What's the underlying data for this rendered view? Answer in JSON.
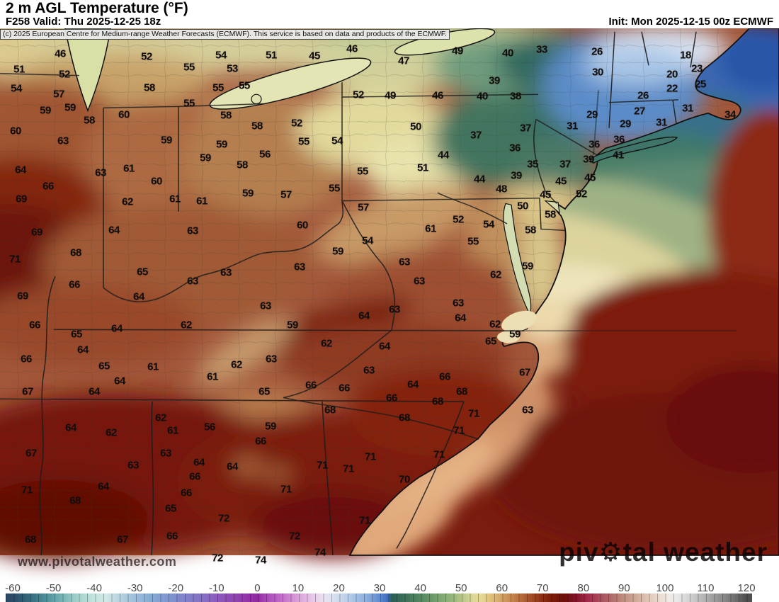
{
  "header": {
    "title": "2 m AGL Temperature (°F)",
    "valid": "F258 Valid: Thu 2025-12-25 18z",
    "init": "Init: Mon 2025-12-15 00z ECMWF",
    "copyright": "(c) 2025 European Centre for Medium-range Weather Forecasts (ECMWF). This service is based on data and products of the ECMWF."
  },
  "watermarks": {
    "url": "www.pivotalweather.com",
    "brand_pre": "piv",
    "brand_gear": "⚙",
    "brand_post": "tal weather"
  },
  "colorbar": {
    "unit": "°F",
    "min": -60,
    "max": 120,
    "ticks": [
      -60,
      -50,
      -40,
      -30,
      -20,
      -10,
      0,
      10,
      20,
      30,
      40,
      50,
      60,
      70,
      80,
      90,
      100,
      110,
      120
    ],
    "stops": [
      [
        -60,
        "#2b4a68"
      ],
      [
        -56,
        "#33687a"
      ],
      [
        -52,
        "#4b8f99"
      ],
      [
        -48,
        "#74b4b4"
      ],
      [
        -44,
        "#a3d2cd"
      ],
      [
        -40,
        "#c6e5de"
      ],
      [
        -37,
        "#cfe7e6"
      ],
      [
        -34,
        "#b9d3e0"
      ],
      [
        -30,
        "#9dbfdb"
      ],
      [
        -26,
        "#85aad4"
      ],
      [
        -22,
        "#7e97d0"
      ],
      [
        -18,
        "#8083cb"
      ],
      [
        -14,
        "#8572c6"
      ],
      [
        -10,
        "#8c5cbe"
      ],
      [
        -6,
        "#9146b3"
      ],
      [
        -2,
        "#9232a6"
      ],
      [
        0,
        "#8f2aa0"
      ],
      [
        2,
        "#a944b8"
      ],
      [
        5,
        "#bd63c6"
      ],
      [
        8,
        "#cf86d2"
      ],
      [
        11,
        "#deabdf"
      ],
      [
        14,
        "#e8cdea"
      ],
      [
        16,
        "#e9dff0"
      ],
      [
        18,
        "#dfe3f2"
      ],
      [
        21,
        "#c4d5ec"
      ],
      [
        24,
        "#a6c2e5"
      ],
      [
        27,
        "#88addd"
      ],
      [
        30,
        "#5f8bd0"
      ],
      [
        32,
        "#3d6cc0"
      ],
      [
        33,
        "#2b5f56"
      ],
      [
        36,
        "#3b7058"
      ],
      [
        40,
        "#528760"
      ],
      [
        44,
        "#73a06d"
      ],
      [
        48,
        "#98b87c"
      ],
      [
        51,
        "#c0cc8c"
      ],
      [
        53,
        "#dcd898"
      ],
      [
        55,
        "#e5d894"
      ],
      [
        57,
        "#e0c37e"
      ],
      [
        60,
        "#d3a263"
      ],
      [
        63,
        "#c1804a"
      ],
      [
        66,
        "#ab5a2e"
      ],
      [
        69,
        "#933818"
      ],
      [
        72,
        "#7d1d0b"
      ],
      [
        75,
        "#6f1106"
      ],
      [
        78,
        "#7d1226"
      ],
      [
        80,
        "#97203f"
      ],
      [
        82,
        "#a93152"
      ],
      [
        84,
        "#a84b5c"
      ],
      [
        87,
        "#b06d68"
      ],
      [
        90,
        "#c08f80"
      ],
      [
        93,
        "#d0ab9a"
      ],
      [
        96,
        "#e0c7b8"
      ],
      [
        99,
        "#ecdcd2"
      ],
      [
        101,
        "#f1e9e4"
      ],
      [
        103,
        "#e9e9e9"
      ],
      [
        106,
        "#d2d2d2"
      ],
      [
        109,
        "#b9b9b9"
      ],
      [
        112,
        "#9d9d9d"
      ],
      [
        115,
        "#838383"
      ],
      [
        118,
        "#676767"
      ],
      [
        120,
        "#4f4f4f"
      ]
    ]
  },
  "map": {
    "labels": [
      [
        46,
        85,
        76
      ],
      [
        51,
        27,
        98
      ],
      [
        52,
        91,
        105
      ],
      [
        52,
        207,
        80
      ],
      [
        54,
        312,
        78
      ],
      [
        55,
        267,
        95
      ],
      [
        53,
        328,
        97
      ],
      [
        54,
        23,
        125
      ],
      [
        57,
        83,
        133
      ],
      [
        58,
        211,
        124
      ],
      [
        55,
        308,
        124
      ],
      [
        55,
        345,
        121
      ],
      [
        59,
        64,
        156
      ],
      [
        59,
        99,
        152
      ],
      [
        55,
        267,
        146
      ],
      [
        58,
        126,
        170
      ],
      [
        60,
        175,
        162
      ],
      [
        58,
        319,
        163
      ],
      [
        58,
        363,
        178
      ],
      [
        60,
        22,
        185
      ],
      [
        63,
        89,
        199
      ],
      [
        59,
        235,
        198
      ],
      [
        59,
        313,
        204
      ],
      [
        59,
        290,
        223
      ],
      [
        58,
        342,
        233
      ],
      [
        56,
        374,
        218
      ],
      [
        64,
        29,
        240
      ],
      [
        63,
        142,
        244
      ],
      [
        61,
        182,
        238
      ],
      [
        66,
        68,
        263
      ],
      [
        60,
        221,
        256
      ],
      [
        69,
        30,
        281
      ],
      [
        62,
        180,
        285
      ],
      [
        61,
        247,
        281
      ],
      [
        61,
        285,
        284
      ],
      [
        59,
        350,
        273
      ],
      [
        51,
        383,
        78
      ],
      [
        45,
        444,
        79
      ],
      [
        46,
        497,
        69
      ],
      [
        47,
        570,
        86
      ],
      [
        49,
        646,
        72
      ],
      [
        40,
        717,
        75
      ],
      [
        39,
        698,
        114
      ],
      [
        52,
        506,
        134
      ],
      [
        49,
        551,
        135
      ],
      [
        46,
        618,
        135
      ],
      [
        40,
        681,
        136
      ],
      [
        38,
        728,
        136
      ],
      [
        52,
        419,
        174
      ],
      [
        55,
        429,
        200
      ],
      [
        54,
        476,
        199
      ],
      [
        50,
        587,
        179
      ],
      [
        37,
        672,
        191
      ],
      [
        37,
        742,
        181
      ],
      [
        36,
        727,
        209
      ],
      [
        44,
        626,
        219
      ],
      [
        35,
        752,
        232
      ],
      [
        55,
        512,
        242
      ],
      [
        51,
        597,
        237
      ],
      [
        39,
        729,
        248
      ],
      [
        44,
        677,
        253
      ],
      [
        48,
        708,
        267
      ],
      [
        55,
        472,
        266
      ],
      [
        57,
        404,
        275
      ],
      [
        57,
        513,
        293
      ],
      [
        50,
        738,
        291
      ],
      [
        33,
        765,
        70
      ],
      [
        26,
        843,
        73
      ],
      [
        18,
        968,
        78
      ],
      [
        30,
        844,
        102
      ],
      [
        20,
        949,
        105
      ],
      [
        23,
        984,
        97
      ],
      [
        22,
        949,
        125
      ],
      [
        25,
        989,
        119
      ],
      [
        26,
        908,
        135
      ],
      [
        27,
        903,
        157
      ],
      [
        31,
        971,
        153
      ],
      [
        34,
        1031,
        162
      ],
      [
        29,
        836,
        162
      ],
      [
        29,
        883,
        175
      ],
      [
        31,
        934,
        173
      ],
      [
        31,
        808,
        178
      ],
      [
        36,
        874,
        197
      ],
      [
        36,
        839,
        204
      ],
      [
        39,
        831,
        225
      ],
      [
        41,
        873,
        219
      ],
      [
        37,
        798,
        232
      ],
      [
        45,
        792,
        256
      ],
      [
        45,
        833,
        251
      ],
      [
        45,
        770,
        275
      ],
      [
        52,
        821,
        274
      ],
      [
        58,
        777,
        303
      ],
      [
        69,
        52,
        328
      ],
      [
        64,
        161,
        325
      ],
      [
        63,
        272,
        326
      ],
      [
        68,
        107,
        357
      ],
      [
        71,
        21,
        366
      ],
      [
        65,
        201,
        384
      ],
      [
        63,
        319,
        385
      ],
      [
        63,
        272,
        397
      ],
      [
        66,
        105,
        402
      ],
      [
        69,
        32,
        418
      ],
      [
        64,
        196,
        419
      ],
      [
        63,
        375,
        432
      ],
      [
        66,
        49,
        459
      ],
      [
        62,
        263,
        459
      ],
      [
        64,
        165,
        464
      ],
      [
        65,
        108,
        472
      ],
      [
        64,
        117,
        494
      ],
      [
        66,
        37,
        507
      ],
      [
        65,
        147,
        517
      ],
      [
        61,
        216,
        518
      ],
      [
        62,
        334,
        515
      ],
      [
        61,
        300,
        532
      ],
      [
        64,
        169,
        538
      ],
      [
        64,
        133,
        553
      ],
      [
        67,
        39,
        553
      ],
      [
        65,
        373,
        553
      ],
      [
        60,
        427,
        318
      ],
      [
        54,
        519,
        340
      ],
      [
        61,
        608,
        323
      ],
      [
        52,
        647,
        310
      ],
      [
        54,
        690,
        317
      ],
      [
        55,
        668,
        341
      ],
      [
        58,
        749,
        325
      ],
      [
        59,
        477,
        355
      ],
      [
        63,
        423,
        377
      ],
      [
        63,
        571,
        370
      ],
      [
        59,
        745,
        376
      ],
      [
        62,
        700,
        388
      ],
      [
        63,
        592,
        397
      ],
      [
        63,
        647,
        428
      ],
      [
        63,
        557,
        437
      ],
      [
        64,
        514,
        446
      ],
      [
        64,
        650,
        449
      ],
      [
        62,
        699,
        458
      ],
      [
        59,
        413,
        459
      ],
      [
        59,
        727,
        472
      ],
      [
        65,
        693,
        482
      ],
      [
        62,
        461,
        485
      ],
      [
        64,
        543,
        489
      ],
      [
        63,
        383,
        507
      ],
      [
        63,
        521,
        523
      ],
      [
        66,
        628,
        532
      ],
      [
        67,
        741,
        526
      ],
      [
        66,
        439,
        544
      ],
      [
        66,
        486,
        548
      ],
      [
        64,
        583,
        543
      ],
      [
        68,
        652,
        553
      ],
      [
        66,
        553,
        562
      ],
      [
        62,
        227,
        590
      ],
      [
        64,
        100,
        604
      ],
      [
        62,
        157,
        611
      ],
      [
        61,
        244,
        608
      ],
      [
        56,
        296,
        603
      ],
      [
        66,
        368,
        623
      ],
      [
        67,
        44,
        640
      ],
      [
        63,
        234,
        640
      ],
      [
        64,
        281,
        653
      ],
      [
        64,
        328,
        659
      ],
      [
        63,
        188,
        657
      ],
      [
        66,
        275,
        673
      ],
      [
        71,
        38,
        692
      ],
      [
        64,
        146,
        687
      ],
      [
        66,
        263,
        696
      ],
      [
        68,
        106,
        707
      ],
      [
        65,
        241,
        718
      ],
      [
        72,
        316,
        732
      ],
      [
        68,
        43,
        762
      ],
      [
        67,
        173,
        762
      ],
      [
        66,
        243,
        757
      ],
      [
        72,
        307,
        788
      ],
      [
        74,
        368,
        791
      ],
      [
        68,
        618,
        567
      ],
      [
        68,
        466,
        579
      ],
      [
        59,
        382,
        602
      ],
      [
        68,
        571,
        590
      ],
      [
        71,
        669,
        584
      ],
      [
        63,
        745,
        579
      ],
      [
        71,
        648,
        608
      ],
      [
        71,
        523,
        645
      ],
      [
        71,
        620,
        642
      ],
      [
        71,
        455,
        657
      ],
      [
        71,
        492,
        662
      ],
      [
        71,
        404,
        691
      ],
      [
        70,
        571,
        677
      ],
      [
        71,
        515,
        735
      ],
      [
        72,
        416,
        757
      ],
      [
        74,
        452,
        780
      ]
    ]
  }
}
